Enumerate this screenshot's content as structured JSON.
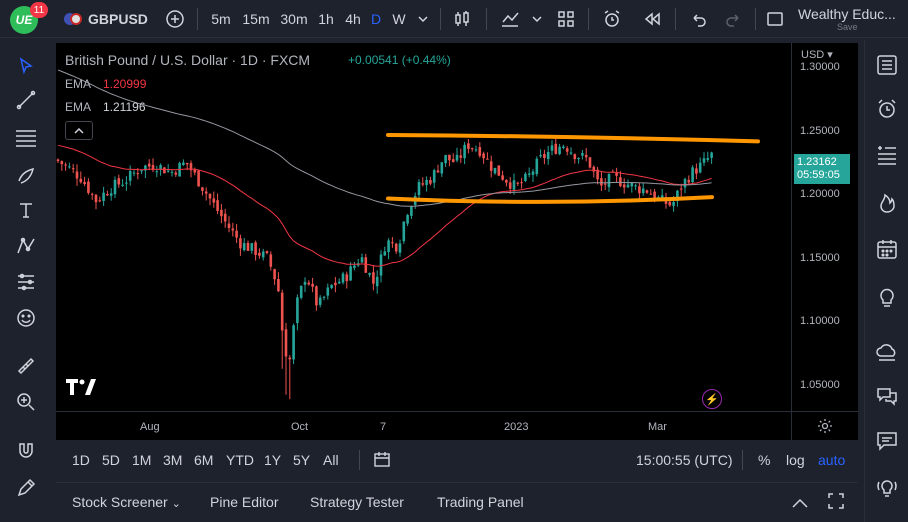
{
  "topbar": {
    "logo_text": "UE",
    "notification_count": "11",
    "symbol": "GBPUSD",
    "intervals": [
      "5m",
      "15m",
      "30m",
      "1h",
      "4h",
      "D",
      "W"
    ],
    "active_interval": "D",
    "layout_name": "Wealthy Educ...",
    "save_label": "Save"
  },
  "legend": {
    "title": "British Pound / U.S. Dollar · 1D · FXCM",
    "change": "+0.00541 (+0.44%)",
    "indicators": [
      {
        "name": "EMA",
        "value": "1.20999",
        "color": "#f23645"
      },
      {
        "name": "EMA",
        "value": "1.21196",
        "color": "#d1d4dc"
      }
    ]
  },
  "price_axis": {
    "currency": "USD",
    "ticks": [
      "1.30000",
      "1.25000",
      "1.20000",
      "1.15000",
      "1.10000",
      "1.05000"
    ],
    "last_price": "1.23162",
    "countdown": "05:59:05"
  },
  "time_axis": {
    "labels": [
      "Aug",
      "Oct",
      "7",
      "2023",
      "Mar"
    ]
  },
  "range_bar": {
    "ranges": [
      "1D",
      "5D",
      "1M",
      "3M",
      "6M",
      "YTD",
      "1Y",
      "5Y",
      "All"
    ],
    "clock": "15:00:55 (UTC)",
    "options": [
      "%",
      "log",
      "auto"
    ]
  },
  "bottom_panel": {
    "tabs": [
      "Stock Screener",
      "Pine Editor",
      "Strategy Tester",
      "Trading Panel"
    ]
  },
  "colors": {
    "up": "#26a69a",
    "down": "#ef5350",
    "annotation": "#ff9800",
    "ema_fast": "#f23645",
    "ema_slow": "#9598a1",
    "accent": "#2962ff"
  },
  "chart_data": {
    "type": "candlestick",
    "ylim": [
      1.03,
      1.32
    ],
    "annotations": [
      {
        "type": "line",
        "from": [
          1.2475
        ],
        "to": [
          1.2425
        ]
      },
      {
        "type": "line",
        "from": [
          1.1975
        ],
        "to": [
          1.1985
        ]
      }
    ]
  }
}
